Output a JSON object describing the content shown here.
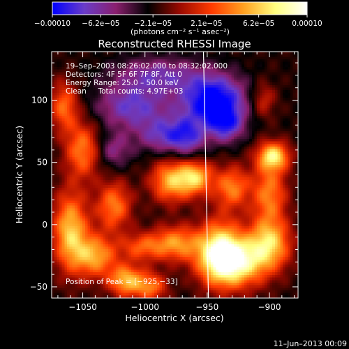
{
  "chart_data": {
    "type": "heatmap",
    "title": "Reconstructed RHESSI Image",
    "xlabel": "Heliocentric X (arcsec)",
    "ylabel": "Heliocentric Y (arcsec)",
    "xlim": [
      -1075,
      -877
    ],
    "ylim": [
      -59,
      139
    ],
    "x_ticks": [
      -1050,
      -1000,
      -950,
      -900
    ],
    "x_tick_labels": [
      "−1050",
      "−1000",
      "−950",
      "−900"
    ],
    "y_ticks": [
      -50,
      0,
      50,
      100
    ],
    "y_tick_labels": [
      "−50",
      "0",
      "50",
      "100"
    ],
    "colorbar": {
      "range": [
        -0.0001,
        0.0001
      ],
      "ticks": [
        -0.0001,
        -6.2e-05,
        -2.1e-05,
        2.1e-05,
        6.2e-05,
        0.0001
      ],
      "tick_labels": [
        "−0.00010",
        "−6.2e−05",
        "−2.1e−05",
        "2.1e−05",
        "6.2e−05",
        "0.00010"
      ],
      "unit_label": "(photons cm⁻² s⁻¹ asec⁻²)",
      "colors": [
        "#0000ff",
        "#6a3cc8",
        "#8a1f6e",
        "#000000",
        "#9a0a00",
        "#ff3b00",
        "#ffa020",
        "#ffff80",
        "#ffffff"
      ]
    },
    "annotations": {
      "line1": "19–Sep–2003 08:26:02.000 to 08:32:02.000",
      "line2": "Detectors: 4F 5F 6F 7F 8F, Att 0",
      "line3": "Energy Range: 25.0 – 50.0 keV",
      "line4": "Clean     Total counts: 4.97E+03",
      "peak": "Position of Peak = [−925,−33]"
    },
    "limb_line": {
      "x1": -953,
      "y1": 139,
      "x2": -949,
      "y2": -59
    },
    "peak_position": [
      -925,
      -33
    ],
    "blobs": [
      {
        "x": -928,
        "y": -30,
        "sx": 18,
        "sy": 14,
        "a": 1.0
      },
      {
        "x": -940,
        "y": -20,
        "sx": 12,
        "sy": 18,
        "a": 0.75
      },
      {
        "x": -900,
        "y": -15,
        "sx": 12,
        "sy": 14,
        "a": 0.75
      },
      {
        "x": -897,
        "y": 55,
        "sx": 9,
        "sy": 8,
        "a": 0.85
      },
      {
        "x": -900,
        "y": 25,
        "sx": 10,
        "sy": 18,
        "a": 0.6
      },
      {
        "x": -930,
        "y": 30,
        "sx": 10,
        "sy": 12,
        "a": 0.6
      },
      {
        "x": -960,
        "y": 38,
        "sx": 10,
        "sy": 10,
        "a": 0.8
      },
      {
        "x": -980,
        "y": 35,
        "sx": 11,
        "sy": 12,
        "a": 0.7
      },
      {
        "x": -975,
        "y": -15,
        "sx": 14,
        "sy": 10,
        "a": 0.65
      },
      {
        "x": -1060,
        "y": -5,
        "sx": 10,
        "sy": 22,
        "a": 0.8
      },
      {
        "x": -1040,
        "y": -25,
        "sx": 12,
        "sy": 12,
        "a": 0.7
      },
      {
        "x": -1025,
        "y": 15,
        "sx": 10,
        "sy": 14,
        "a": 0.6
      },
      {
        "x": -1050,
        "y": 60,
        "sx": 10,
        "sy": 16,
        "a": 0.6
      },
      {
        "x": -1065,
        "y": 95,
        "sx": 8,
        "sy": 14,
        "a": 0.55
      },
      {
        "x": -1015,
        "y": -45,
        "sx": 10,
        "sy": 9,
        "a": 0.75
      },
      {
        "x": -995,
        "y": -50,
        "sx": 9,
        "sy": 8,
        "a": 0.55
      },
      {
        "x": -1003,
        "y": -18,
        "sx": 12,
        "sy": 8,
        "a": 0.45
      },
      {
        "x": -905,
        "y": 100,
        "sx": 7,
        "sy": 10,
        "a": 0.35
      },
      {
        "x": -945,
        "y": 100,
        "sx": 18,
        "sy": 14,
        "a": -0.9
      },
      {
        "x": -935,
        "y": 80,
        "sx": 10,
        "sy": 10,
        "a": -0.55
      },
      {
        "x": -1010,
        "y": 95,
        "sx": 20,
        "sy": 12,
        "a": -0.55
      },
      {
        "x": -985,
        "y": 72,
        "sx": 15,
        "sy": 10,
        "a": -0.5
      },
      {
        "x": -990,
        "y": 120,
        "sx": 25,
        "sy": 10,
        "a": -0.45
      },
      {
        "x": -965,
        "y": 70,
        "sx": 10,
        "sy": 12,
        "a": -0.45
      },
      {
        "x": -1025,
        "y": 60,
        "sx": 10,
        "sy": 10,
        "a": -0.35
      }
    ],
    "background_level": -0.2
  },
  "timestamp": "11–Jun–2013 00:09"
}
